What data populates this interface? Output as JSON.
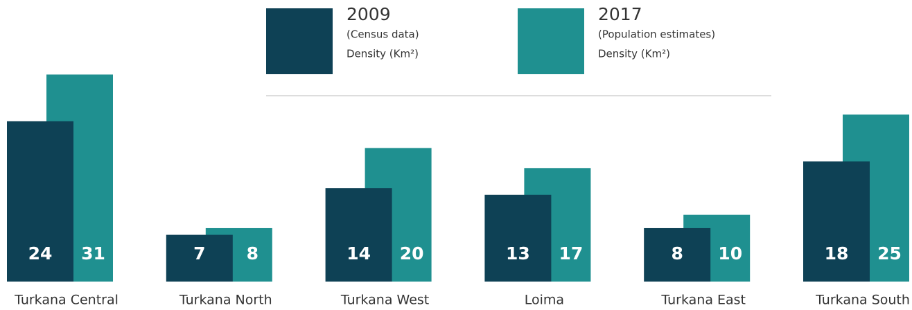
{
  "chart_data": {
    "type": "bar",
    "categories": [
      "Turkana Central",
      "Turkana North",
      "Turkana West",
      "Loima",
      "Turkana East",
      "Turkana South"
    ],
    "series": [
      {
        "name": "2009",
        "description": [
          "(Census data)",
          "Density (Km²)"
        ],
        "color": "#0e4155",
        "values": [
          24,
          7,
          14,
          13,
          8,
          18
        ]
      },
      {
        "name": "2017",
        "description": [
          "(Population estimates)",
          "Density (Km²)"
        ],
        "color": "#1f9090",
        "values": [
          31,
          8,
          20,
          17,
          10,
          25
        ]
      }
    ]
  }
}
